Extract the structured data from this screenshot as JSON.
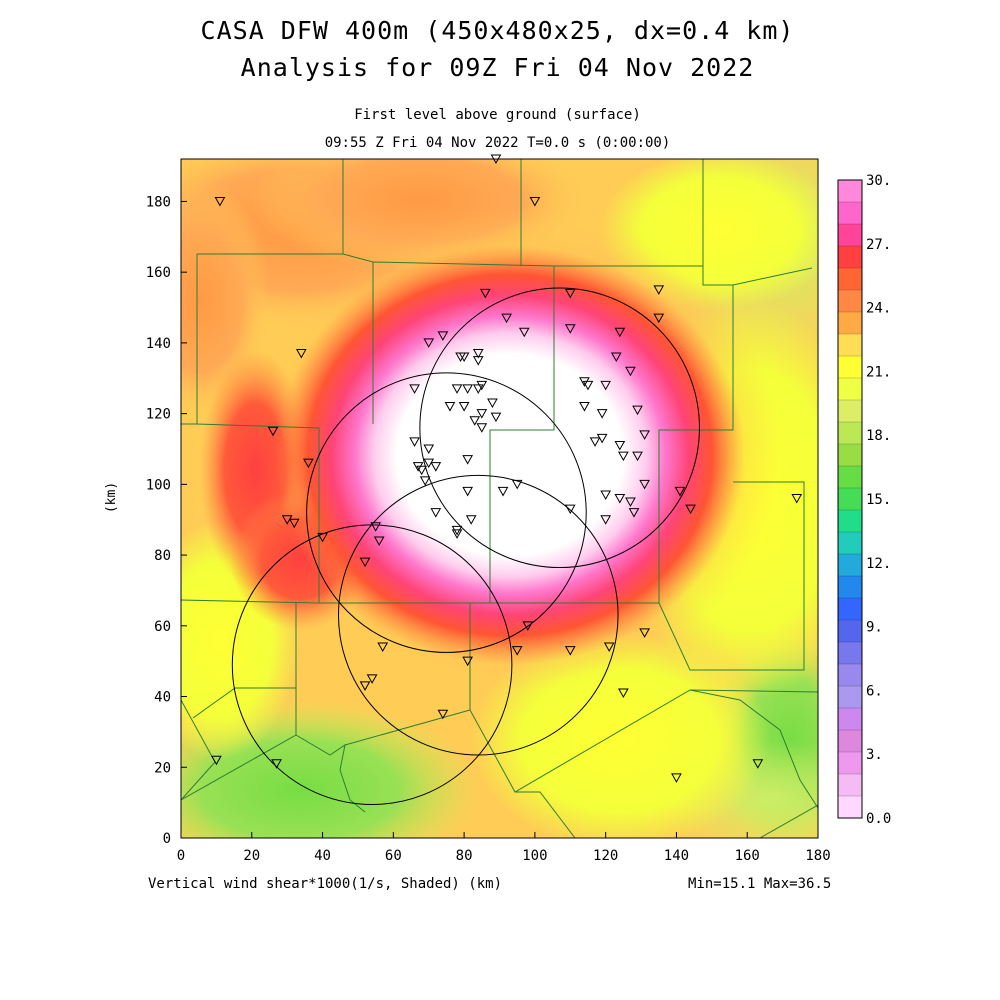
{
  "title_line1": "CASA DFW 400m (450x480x25, dx=0.4 km)",
  "title_line2": "Analysis for 09Z Fri 04 Nov 2022",
  "subtitle_level": "First level above ground (surface)",
  "subtitle_time": "09:55 Z Fri 04 Nov 2022   T=0.0 s (0:00:00)",
  "footer_left": "Vertical wind shear*1000(1/s, Shaded) (km)",
  "footer_right": "Min=15.1 Max=36.5",
  "y_axis_label": "(km)",
  "colors": {
    "background": "#ffffff",
    "boundary": "#2e7d32",
    "high": "#ffffff",
    "magenta": "#ff66cc",
    "red": "#ff4040",
    "orange": "#ff9944",
    "yellow": "#ffff33",
    "green": "#88dd55"
  },
  "chart_data": {
    "type": "heatmap",
    "title": "CASA DFW 400m (450x480x25, dx=0.4 km)",
    "subtitle": "Analysis for 09Z Fri 04 Nov 2022",
    "variable": "Vertical wind shear*1000(1/s, Shaded)",
    "x_unit": "(km)",
    "y_unit": "(km)",
    "xlim": [
      0,
      180
    ],
    "ylim": [
      0,
      192
    ],
    "x_ticks": [
      "0",
      "20",
      "40",
      "60",
      "80",
      "100",
      "120",
      "140",
      "160",
      "180"
    ],
    "y_ticks": [
      "0",
      "20",
      "40",
      "60",
      "80",
      "100",
      "120",
      "140",
      "160",
      "180"
    ],
    "min": 15.1,
    "max": 36.5,
    "colorbar": {
      "tick_labels": [
        "30.",
        "27.",
        "24.",
        "21.",
        "18.",
        "15.",
        "12.",
        "9.",
        "6.",
        "3.",
        "0.0"
      ],
      "colors": [
        "#ff88dd",
        "#ff66cc",
        "#ff4499",
        "#ff4040",
        "#ff6633",
        "#ff8844",
        "#ffaa44",
        "#ffdd55",
        "#ffff33",
        "#eeff44",
        "#ddee66",
        "#bbe855",
        "#99dd44",
        "#66dd44",
        "#44dd55",
        "#22dd88",
        "#22ccbb",
        "#22aadd",
        "#2288ee",
        "#3366ff",
        "#5566ee",
        "#7777ee",
        "#9988ee",
        "#aa99ee",
        "#cc88ee",
        "#dd88dd",
        "#ee99ee",
        "#f4bbf4",
        "#ffd8ff"
      ]
    },
    "radar_rings": [
      {
        "cx_km": 107,
        "cy_km": 116,
        "r_km": 39.5
      },
      {
        "cx_km": 75,
        "cy_km": 92,
        "r_km": 39.5
      },
      {
        "cx_km": 84,
        "cy_km": 63,
        "r_km": 39.5
      },
      {
        "cx_km": 54,
        "cy_km": 49,
        "r_km": 39.5
      }
    ],
    "stations_km": [
      [
        11,
        180
      ],
      [
        89,
        192
      ],
      [
        100,
        180
      ],
      [
        34,
        137
      ],
      [
        26,
        115
      ],
      [
        36,
        106
      ],
      [
        30,
        90
      ],
      [
        32,
        89
      ],
      [
        40,
        85
      ],
      [
        55,
        88
      ],
      [
        56,
        84
      ],
      [
        52,
        78
      ],
      [
        135,
        155
      ],
      [
        135,
        147
      ],
      [
        110,
        154
      ],
      [
        86,
        154
      ],
      [
        92,
        147
      ],
      [
        97,
        143
      ],
      [
        110,
        144
      ],
      [
        124,
        143
      ],
      [
        123,
        136
      ],
      [
        127,
        132
      ],
      [
        70,
        140
      ],
      [
        74,
        142
      ],
      [
        79,
        136
      ],
      [
        80,
        136
      ],
      [
        84,
        137
      ],
      [
        84,
        135
      ],
      [
        66,
        127
      ],
      [
        78,
        127
      ],
      [
        81,
        127
      ],
      [
        85,
        128
      ],
      [
        84,
        127
      ],
      [
        88,
        123
      ],
      [
        76,
        122
      ],
      [
        80,
        122
      ],
      [
        85,
        120
      ],
      [
        83,
        118
      ],
      [
        89,
        119
      ],
      [
        85,
        116
      ],
      [
        114,
        129
      ],
      [
        115,
        128
      ],
      [
        120,
        128
      ],
      [
        114,
        122
      ],
      [
        119,
        120
      ],
      [
        129,
        121
      ],
      [
        131,
        114
      ],
      [
        117,
        112
      ],
      [
        119,
        113
      ],
      [
        124,
        111
      ],
      [
        125,
        108
      ],
      [
        129,
        108
      ],
      [
        66,
        112
      ],
      [
        70,
        110
      ],
      [
        67,
        105
      ],
      [
        68,
        104
      ],
      [
        70,
        106
      ],
      [
        72,
        105
      ],
      [
        69,
        101
      ],
      [
        81,
        107
      ],
      [
        131,
        100
      ],
      [
        120,
        97
      ],
      [
        124,
        96
      ],
      [
        127,
        95
      ],
      [
        128,
        92
      ],
      [
        72,
        92
      ],
      [
        81,
        98
      ],
      [
        91,
        98
      ],
      [
        95,
        100
      ],
      [
        110,
        93
      ],
      [
        120,
        90
      ],
      [
        141,
        98
      ],
      [
        144,
        93
      ],
      [
        174,
        96
      ],
      [
        78,
        87
      ],
      [
        78,
        86
      ],
      [
        82,
        90
      ],
      [
        121,
        54
      ],
      [
        110,
        53
      ],
      [
        95,
        53
      ],
      [
        98,
        60
      ],
      [
        131,
        58
      ],
      [
        57,
        54
      ],
      [
        81,
        50
      ],
      [
        52,
        43
      ],
      [
        54,
        45
      ],
      [
        74,
        35
      ],
      [
        125,
        41
      ],
      [
        10,
        22
      ],
      [
        27,
        21
      ],
      [
        140,
        17
      ],
      [
        163,
        21
      ]
    ]
  }
}
